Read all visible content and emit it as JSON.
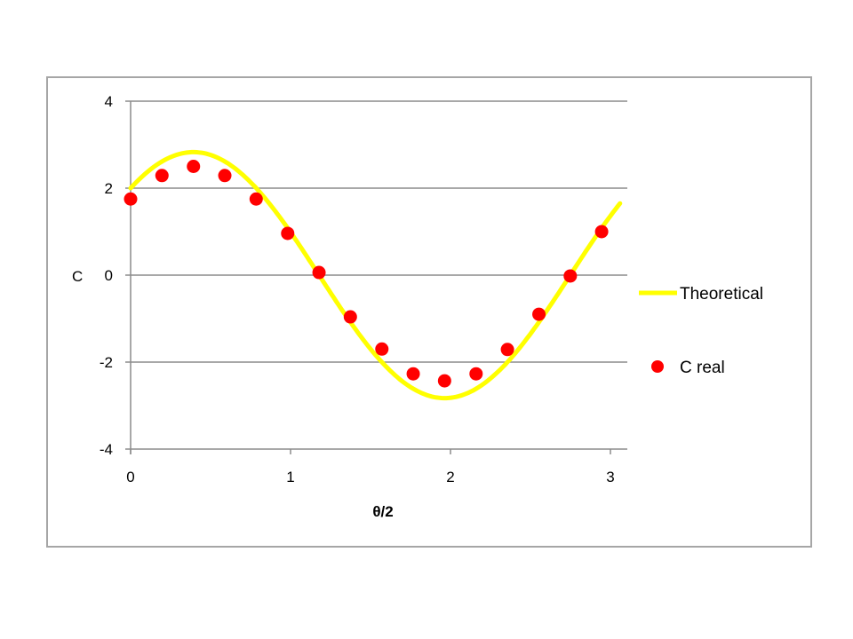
{
  "chart_data": {
    "type": "scatter",
    "title": "",
    "xlabel": "θ/2",
    "ylabel": "C",
    "xlim": [
      0,
      3.1
    ],
    "ylim": [
      -4,
      4
    ],
    "x_ticks": [
      "0",
      "1",
      "2",
      "3"
    ],
    "y_ticks": [
      "4",
      "2",
      "0",
      "-2",
      "-4"
    ],
    "grid": "horizontal major gridlines",
    "legend_position": "right",
    "series": [
      {
        "name": "Theoretical",
        "type": "line",
        "color": "#ffff00",
        "formula": "2*sqrt(2)*cos(2x - pi/4)",
        "x": [
          0,
          0.2,
          0.39,
          0.6,
          0.8,
          1.0,
          1.2,
          1.4,
          1.6,
          1.8,
          1.96,
          2.2,
          2.4,
          2.6,
          2.8,
          3.06
        ],
        "values": [
          2.0,
          2.63,
          2.83,
          2.61,
          1.93,
          0.95,
          -0.17,
          -1.24,
          -2.14,
          -2.69,
          -2.83,
          -2.59,
          -1.83,
          -0.79,
          0.33,
          1.57
        ]
      },
      {
        "name": "C real",
        "type": "scatter",
        "color": "#ff0000",
        "x": [
          0,
          0.196,
          0.393,
          0.589,
          0.785,
          0.982,
          1.178,
          1.374,
          1.571,
          1.767,
          1.963,
          2.16,
          2.356,
          2.553,
          2.749,
          2.945
        ],
        "values": [
          1.75,
          2.29,
          2.5,
          2.29,
          1.75,
          0.96,
          0.06,
          -0.96,
          -1.7,
          -2.27,
          -2.43,
          -2.27,
          -1.71,
          -0.9,
          -0.02,
          1.0
        ]
      }
    ]
  },
  "legend": {
    "items": [
      {
        "label": "Theoretical",
        "marker": "line",
        "color": "#ffff00"
      },
      {
        "label": "C real",
        "marker": "circle",
        "color": "#ff0000"
      }
    ]
  },
  "colors": {
    "frame_border": "#a6a6a6",
    "gridline": "#8c8c8c",
    "axis": "#8c8c8c"
  }
}
